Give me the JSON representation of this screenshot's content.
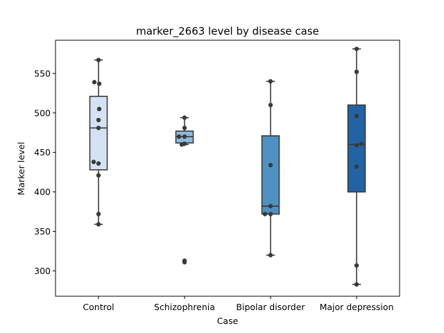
{
  "chart_data": {
    "type": "box",
    "title": "marker_2663 level by disease case",
    "xlabel": "Case",
    "ylabel": "Marker level",
    "categories": [
      "Control",
      "Schizophrenia",
      "Bipolar disorder",
      "Major depression"
    ],
    "ylim": [
      268,
      592
    ],
    "yticks": [
      300,
      350,
      400,
      450,
      500,
      550
    ],
    "grid": false,
    "colors": [
      "#d4e3f3",
      "#8db9dc",
      "#4f91c1",
      "#2463a3"
    ],
    "boxes": [
      {
        "category": "Control",
        "q1": 428,
        "median": 481,
        "q3": 521,
        "whisker_low": 359,
        "whisker_high": 567,
        "outliers": []
      },
      {
        "category": "Schizophrenia",
        "q1": 462,
        "median": 470,
        "q3": 477,
        "whisker_low": 460,
        "whisker_high": 494,
        "outliers": [
          312
        ]
      },
      {
        "category": "Bipolar disorder",
        "q1": 372,
        "median": 382,
        "q3": 471,
        "whisker_low": 320,
        "whisker_high": 540,
        "outliers": []
      },
      {
        "category": "Major depression",
        "q1": 400,
        "median": 460,
        "q3": 510,
        "whisker_low": 283,
        "whisker_high": 581,
        "outliers": []
      }
    ],
    "points": [
      {
        "category": "Control",
        "values": [
          567,
          539,
          537,
          505,
          491,
          481,
          438,
          436,
          421,
          372,
          359
        ]
      },
      {
        "category": "Schizophrenia",
        "values": [
          494,
          481,
          470,
          470,
          461,
          460,
          313,
          311
        ]
      },
      {
        "category": "Bipolar disorder",
        "values": [
          540,
          510,
          434,
          382,
          372,
          372,
          320
        ]
      },
      {
        "category": "Major depression",
        "values": [
          581,
          552,
          496,
          461,
          459,
          432,
          307,
          283
        ]
      }
    ]
  }
}
